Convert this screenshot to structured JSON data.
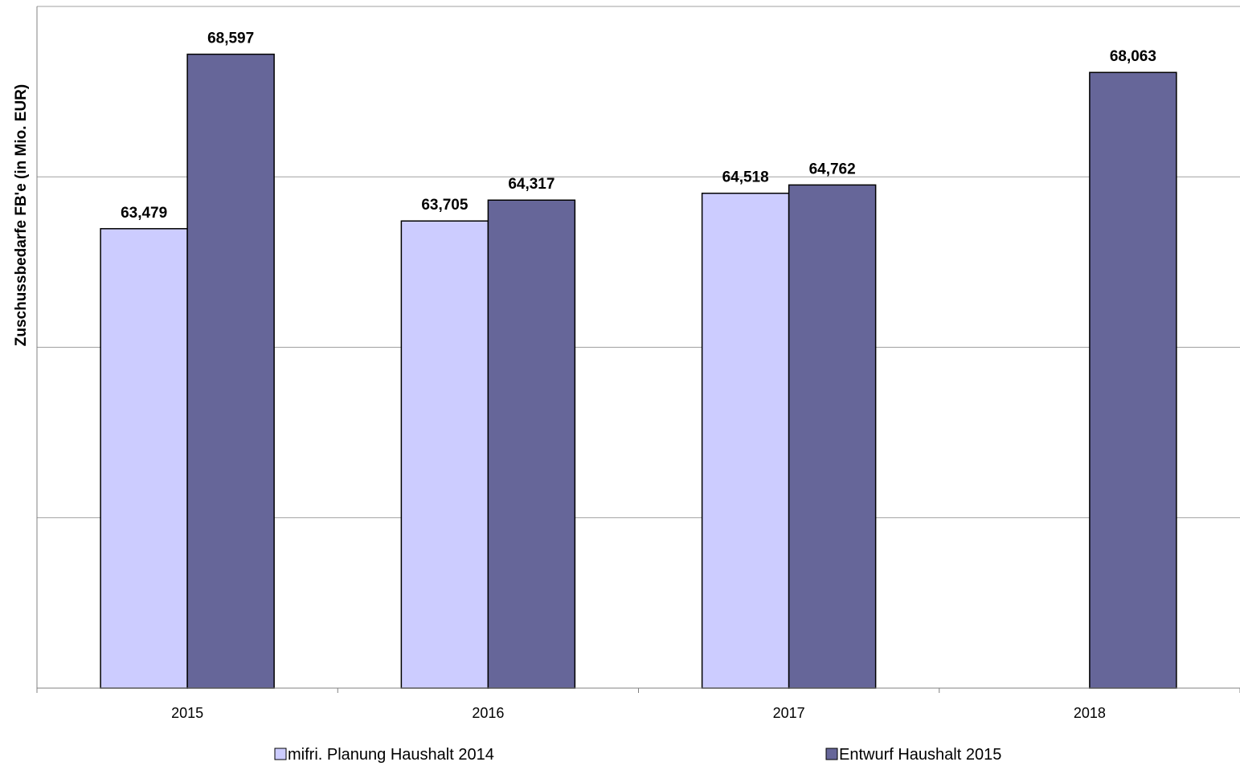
{
  "chart_data": {
    "type": "bar",
    "title": "",
    "xlabel": "",
    "ylabel": "Zuschussbedarfe FB'e (in Mio. EUR)",
    "categories": [
      "2015",
      "2016",
      "2017",
      "2018"
    ],
    "series": [
      {
        "name": "mifri. Planung Haushalt 2014",
        "values": [
          63.479,
          63.705,
          64.518,
          null
        ],
        "labels": [
          "63,479",
          "63,705",
          "64,518",
          ""
        ],
        "color": "#ccccff"
      },
      {
        "name": "Entwurf Haushalt 2015",
        "values": [
          68.597,
          64.317,
          64.762,
          68.063
        ],
        "labels": [
          "68,597",
          "64,317",
          "64,762",
          "68,063"
        ],
        "color": "#666699"
      }
    ],
    "ylim": [
      50,
      70
    ],
    "grid": true,
    "legend": "bottom",
    "colors": {
      "gridline": "#a0a0a0",
      "axis": "#808080",
      "bar_outline": "#000000"
    }
  }
}
